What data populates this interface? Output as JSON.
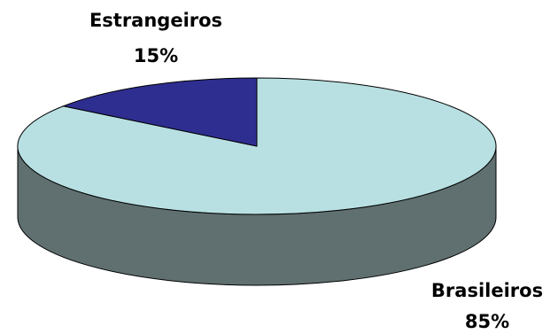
{
  "chart_data": {
    "type": "pie",
    "title": "",
    "slices": [
      {
        "label": "Brasileiros",
        "value": 85,
        "value_label": "85%",
        "color": "#b8e0e2",
        "side_color": "#607070"
      },
      {
        "label": "Estrangeiros",
        "value": 15,
        "value_label": "15%",
        "color": "#2e2e90",
        "side_color": "#1e1e60"
      }
    ],
    "style": "3d",
    "legend": "none"
  }
}
